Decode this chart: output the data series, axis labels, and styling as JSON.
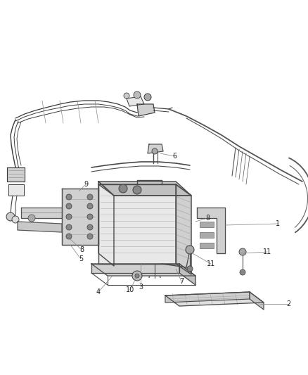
{
  "background_color": "#ffffff",
  "figsize": [
    4.38,
    5.33
  ],
  "dpi": 100,
  "wiring_color": "#3a3a3a",
  "part_color": "#4a4a4a",
  "fill_light": "#e8e8e8",
  "fill_mid": "#d0d0d0",
  "fill_dark": "#b0b0b0",
  "leader_color": "#888888",
  "label_fontsize": 7.0,
  "lw_main": 0.9,
  "lw_thin": 0.55,
  "lw_wire": 0.8
}
